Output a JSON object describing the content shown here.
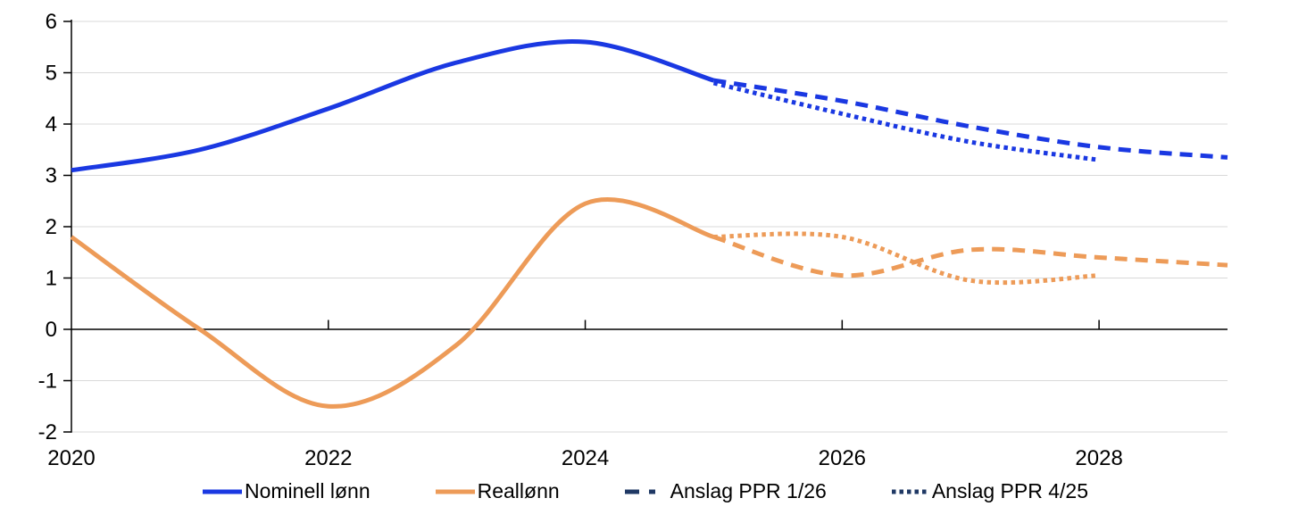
{
  "chart_data": {
    "type": "line",
    "title": "",
    "xlabel": "",
    "ylabel": "",
    "x_range": [
      2020,
      2029
    ],
    "ylim": [
      -2,
      6
    ],
    "y_ticks": [
      6,
      5,
      4,
      3,
      2,
      1,
      0,
      -1,
      -2
    ],
    "x_tick_years": [
      2020,
      2022,
      2024,
      2026,
      2028
    ],
    "grid": true,
    "legend_position": "bottom",
    "series": [
      {
        "name": "Nominell lønn",
        "style": "solid",
        "color": "#1a38e2",
        "x": [
          2020,
          2021,
          2022,
          2023,
          2024,
          2025
        ],
        "values": [
          3.1,
          3.5,
          4.3,
          5.2,
          5.6,
          4.85
        ]
      },
      {
        "name": "Reallønn",
        "style": "solid",
        "color": "#ed9b58",
        "x": [
          2020,
          2021,
          2022,
          2023,
          2024,
          2025
        ],
        "values": [
          1.8,
          0.0,
          -1.5,
          -0.3,
          2.45,
          1.8
        ]
      },
      {
        "name": "Anslag PPR 1/26 nominell lønn",
        "style": "dashed",
        "color": "#1a38e2",
        "x": [
          2025,
          2026,
          2027,
          2028,
          2029
        ],
        "values": [
          4.85,
          4.45,
          3.95,
          3.55,
          3.35
        ]
      },
      {
        "name": "Anslag PPR 4/25 nominell lønn",
        "style": "dotted",
        "color": "#1a38e2",
        "x": [
          2025,
          2026,
          2027,
          2028
        ],
        "values": [
          4.8,
          4.2,
          3.65,
          3.3
        ]
      },
      {
        "name": "Anslag PPR 1/26 reallønn",
        "style": "dashed",
        "color": "#ed9b58",
        "x": [
          2025,
          2026,
          2027,
          2028,
          2029
        ],
        "values": [
          1.8,
          1.05,
          1.55,
          1.4,
          1.25
        ]
      },
      {
        "name": "Anslag PPR 4/25 reallønn",
        "style": "dotted",
        "color": "#ed9b58",
        "x": [
          2025,
          2026,
          2027,
          2028
        ],
        "values": [
          1.8,
          1.8,
          0.95,
          1.05
        ]
      }
    ],
    "legend": [
      {
        "label": "Nominell lønn",
        "color": "#1a38e2",
        "style": "solid"
      },
      {
        "label": "Reallønn",
        "color": "#ed9b58",
        "style": "solid"
      },
      {
        "label": "Anslag PPR 1/26",
        "color": "#1f3864",
        "style": "dashed"
      },
      {
        "label": "Anslag PPR 4/25",
        "color": "#1f3864",
        "style": "dotted"
      }
    ]
  },
  "colors": {
    "blue": "#1a38e2",
    "orange": "#ed9b58",
    "legend_navy": "#1f3864",
    "grid": "#d9d9d9",
    "axis": "#000000",
    "background": "#ffffff"
  }
}
